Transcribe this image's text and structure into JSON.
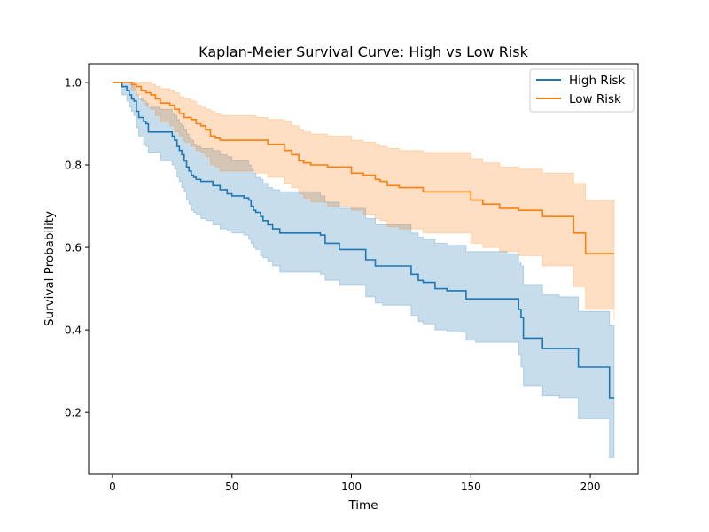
{
  "chart_data": {
    "type": "line",
    "title": "Kaplan-Meier Survival Curve: High vs Low Risk",
    "xlabel": "Time",
    "ylabel": "Survival Probability",
    "xlim": [
      -10,
      220
    ],
    "ylim": [
      0.05,
      1.045
    ],
    "x_ticks": [
      0,
      50,
      100,
      150,
      200
    ],
    "y_ticks": [
      0.2,
      0.4,
      0.6,
      0.8,
      1.0
    ],
    "x_tick_labels": [
      "0",
      "50",
      "100",
      "150",
      "200"
    ],
    "y_tick_labels": [
      "0.2",
      "0.4",
      "0.6",
      "0.8",
      "1.0"
    ],
    "grid": false,
    "legend_position": "top-right",
    "step": "post",
    "series": [
      {
        "name": "High Risk",
        "color": "#1f77b4",
        "times": [
          0,
          4,
          6,
          7,
          8,
          9,
          10,
          11,
          13,
          14,
          15,
          20,
          25,
          26,
          27,
          28,
          29,
          30,
          31,
          32,
          33,
          34,
          35,
          37,
          39,
          42,
          45,
          48,
          50,
          55,
          57,
          58,
          59,
          60,
          62,
          63,
          65,
          67,
          70,
          87,
          89,
          95,
          106,
          110,
          113,
          125,
          128,
          130,
          135,
          140,
          148,
          152,
          165,
          170,
          171,
          172,
          180,
          187,
          195,
          205,
          208,
          210
        ],
        "survival": [
          1.0,
          0.99,
          0.98,
          0.97,
          0.96,
          0.955,
          0.93,
          0.915,
          0.905,
          0.9,
          0.88,
          0.88,
          0.87,
          0.86,
          0.845,
          0.835,
          0.825,
          0.81,
          0.795,
          0.785,
          0.775,
          0.77,
          0.765,
          0.76,
          0.76,
          0.75,
          0.74,
          0.73,
          0.725,
          0.72,
          0.715,
          0.7,
          0.69,
          0.685,
          0.675,
          0.665,
          0.655,
          0.645,
          0.635,
          0.63,
          0.61,
          0.595,
          0.57,
          0.555,
          0.555,
          0.535,
          0.52,
          0.515,
          0.5,
          0.495,
          0.475,
          0.475,
          0.475,
          0.45,
          0.43,
          0.38,
          0.355,
          0.355,
          0.31,
          0.31,
          0.235,
          0.235
        ],
        "ci_lower": [
          1.0,
          0.97,
          0.955,
          0.94,
          0.93,
          0.92,
          0.89,
          0.87,
          0.85,
          0.845,
          0.83,
          0.81,
          0.8,
          0.79,
          0.77,
          0.76,
          0.745,
          0.735,
          0.715,
          0.705,
          0.69,
          0.685,
          0.68,
          0.67,
          0.665,
          0.655,
          0.645,
          0.64,
          0.635,
          0.63,
          0.62,
          0.61,
          0.6,
          0.595,
          0.58,
          0.575,
          0.565,
          0.555,
          0.54,
          0.535,
          0.52,
          0.51,
          0.48,
          0.465,
          0.46,
          0.435,
          0.42,
          0.415,
          0.4,
          0.395,
          0.375,
          0.37,
          0.37,
          0.34,
          0.31,
          0.265,
          0.24,
          0.235,
          0.185,
          0.185,
          0.09,
          0.09
        ],
        "ci_upper": [
          1.0,
          1.0,
          1.0,
          1.0,
          1.0,
          0.99,
          0.97,
          0.96,
          0.955,
          0.95,
          0.94,
          0.935,
          0.925,
          0.92,
          0.91,
          0.9,
          0.895,
          0.885,
          0.875,
          0.865,
          0.86,
          0.85,
          0.845,
          0.84,
          0.84,
          0.835,
          0.825,
          0.82,
          0.81,
          0.81,
          0.8,
          0.79,
          0.78,
          0.77,
          0.765,
          0.755,
          0.745,
          0.74,
          0.735,
          0.725,
          0.71,
          0.695,
          0.67,
          0.655,
          0.655,
          0.635,
          0.625,
          0.62,
          0.61,
          0.605,
          0.59,
          0.59,
          0.585,
          0.565,
          0.555,
          0.51,
          0.485,
          0.48,
          0.445,
          0.445,
          0.41,
          0.41
        ]
      },
      {
        "name": "Low Risk",
        "color": "#ff7f0e",
        "times": [
          0,
          8,
          10,
          12,
          14,
          16,
          18,
          20,
          24,
          26,
          28,
          30,
          33,
          35,
          37,
          39,
          41,
          43,
          45,
          60,
          65,
          72,
          75,
          78,
          80,
          83,
          90,
          100,
          105,
          110,
          112,
          115,
          120,
          130,
          150,
          155,
          162,
          170,
          180,
          193,
          198,
          210
        ],
        "survival": [
          1.0,
          0.995,
          0.99,
          0.98,
          0.975,
          0.97,
          0.96,
          0.95,
          0.945,
          0.935,
          0.925,
          0.915,
          0.91,
          0.9,
          0.895,
          0.885,
          0.87,
          0.865,
          0.86,
          0.86,
          0.85,
          0.835,
          0.825,
          0.81,
          0.805,
          0.8,
          0.795,
          0.78,
          0.775,
          0.765,
          0.76,
          0.75,
          0.745,
          0.735,
          0.715,
          0.705,
          0.695,
          0.69,
          0.675,
          0.635,
          0.585,
          0.585
        ],
        "ci_lower": [
          1.0,
          0.98,
          0.97,
          0.955,
          0.945,
          0.935,
          0.92,
          0.905,
          0.895,
          0.88,
          0.87,
          0.855,
          0.845,
          0.835,
          0.83,
          0.82,
          0.8,
          0.795,
          0.785,
          0.78,
          0.77,
          0.755,
          0.745,
          0.73,
          0.72,
          0.71,
          0.7,
          0.69,
          0.68,
          0.67,
          0.665,
          0.65,
          0.645,
          0.635,
          0.61,
          0.6,
          0.59,
          0.58,
          0.555,
          0.505,
          0.45,
          0.425
        ],
        "ci_upper": [
          1.0,
          1.0,
          1.0,
          1.0,
          1.0,
          0.995,
          0.99,
          0.985,
          0.98,
          0.975,
          0.965,
          0.96,
          0.955,
          0.945,
          0.94,
          0.935,
          0.93,
          0.925,
          0.92,
          0.915,
          0.91,
          0.905,
          0.895,
          0.885,
          0.88,
          0.875,
          0.87,
          0.86,
          0.855,
          0.85,
          0.845,
          0.84,
          0.835,
          0.83,
          0.815,
          0.805,
          0.795,
          0.79,
          0.78,
          0.755,
          0.715,
          0.715
        ]
      }
    ]
  }
}
